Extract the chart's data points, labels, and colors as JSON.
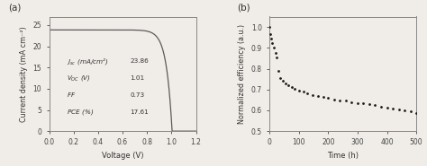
{
  "panel_a_label": "(a)",
  "panel_b_label": "(b)",
  "jv_xlabel": "Voltage (V)",
  "jv_ylabel": "Current density (mA cm⁻²)",
  "jv_xlim": [
    0.0,
    1.2
  ],
  "jv_ylim": [
    0,
    27
  ],
  "jv_yticks": [
    0,
    5,
    10,
    15,
    20,
    25
  ],
  "jv_xticks": [
    0.0,
    0.2,
    0.4,
    0.6,
    0.8,
    1.0,
    1.2
  ],
  "annotation_keys_italic": [
    "J",
    "V",
    "FF",
    "PCE"
  ],
  "annotation_keys_rest": [
    "sc  (mA/cm²)",
    "OC (V)",
    "",
    " (%)"
  ],
  "annotation_keys_sub": [
    "sc",
    "OC",
    "",
    ""
  ],
  "annotation_values": [
    "23.86",
    "1.01",
    "0.73",
    "17.61"
  ],
  "jv_color": "#5a5a5a",
  "jv_Jsc": 23.86,
  "jv_Voc": 1.01,
  "bg_color": "#f0ede8",
  "mppt_xlabel": "Time (h)",
  "mppt_ylabel": "Normalized efficiency (a.u.)",
  "mppt_xlim": [
    0,
    500
  ],
  "mppt_ylim": [
    0.5,
    1.05
  ],
  "mppt_yticks": [
    0.5,
    0.6,
    0.7,
    0.8,
    0.9,
    1.0
  ],
  "mppt_xticks": [
    0,
    100,
    200,
    300,
    400,
    500
  ],
  "mppt_color": "#1a1a1a",
  "mppt_time": [
    0,
    3,
    6,
    10,
    15,
    20,
    25,
    30,
    38,
    46,
    55,
    65,
    75,
    87,
    100,
    115,
    130,
    148,
    165,
    183,
    200,
    220,
    240,
    260,
    280,
    300,
    320,
    340,
    360,
    380,
    400,
    420,
    440,
    460,
    480,
    500
  ],
  "mppt_eff": [
    1.0,
    0.965,
    0.945,
    0.925,
    0.9,
    0.875,
    0.855,
    0.79,
    0.755,
    0.74,
    0.73,
    0.72,
    0.71,
    0.705,
    0.695,
    0.69,
    0.68,
    0.675,
    0.67,
    0.663,
    0.658,
    0.653,
    0.648,
    0.645,
    0.64,
    0.636,
    0.633,
    0.628,
    0.624,
    0.618,
    0.613,
    0.608,
    0.603,
    0.6,
    0.597,
    0.586
  ]
}
